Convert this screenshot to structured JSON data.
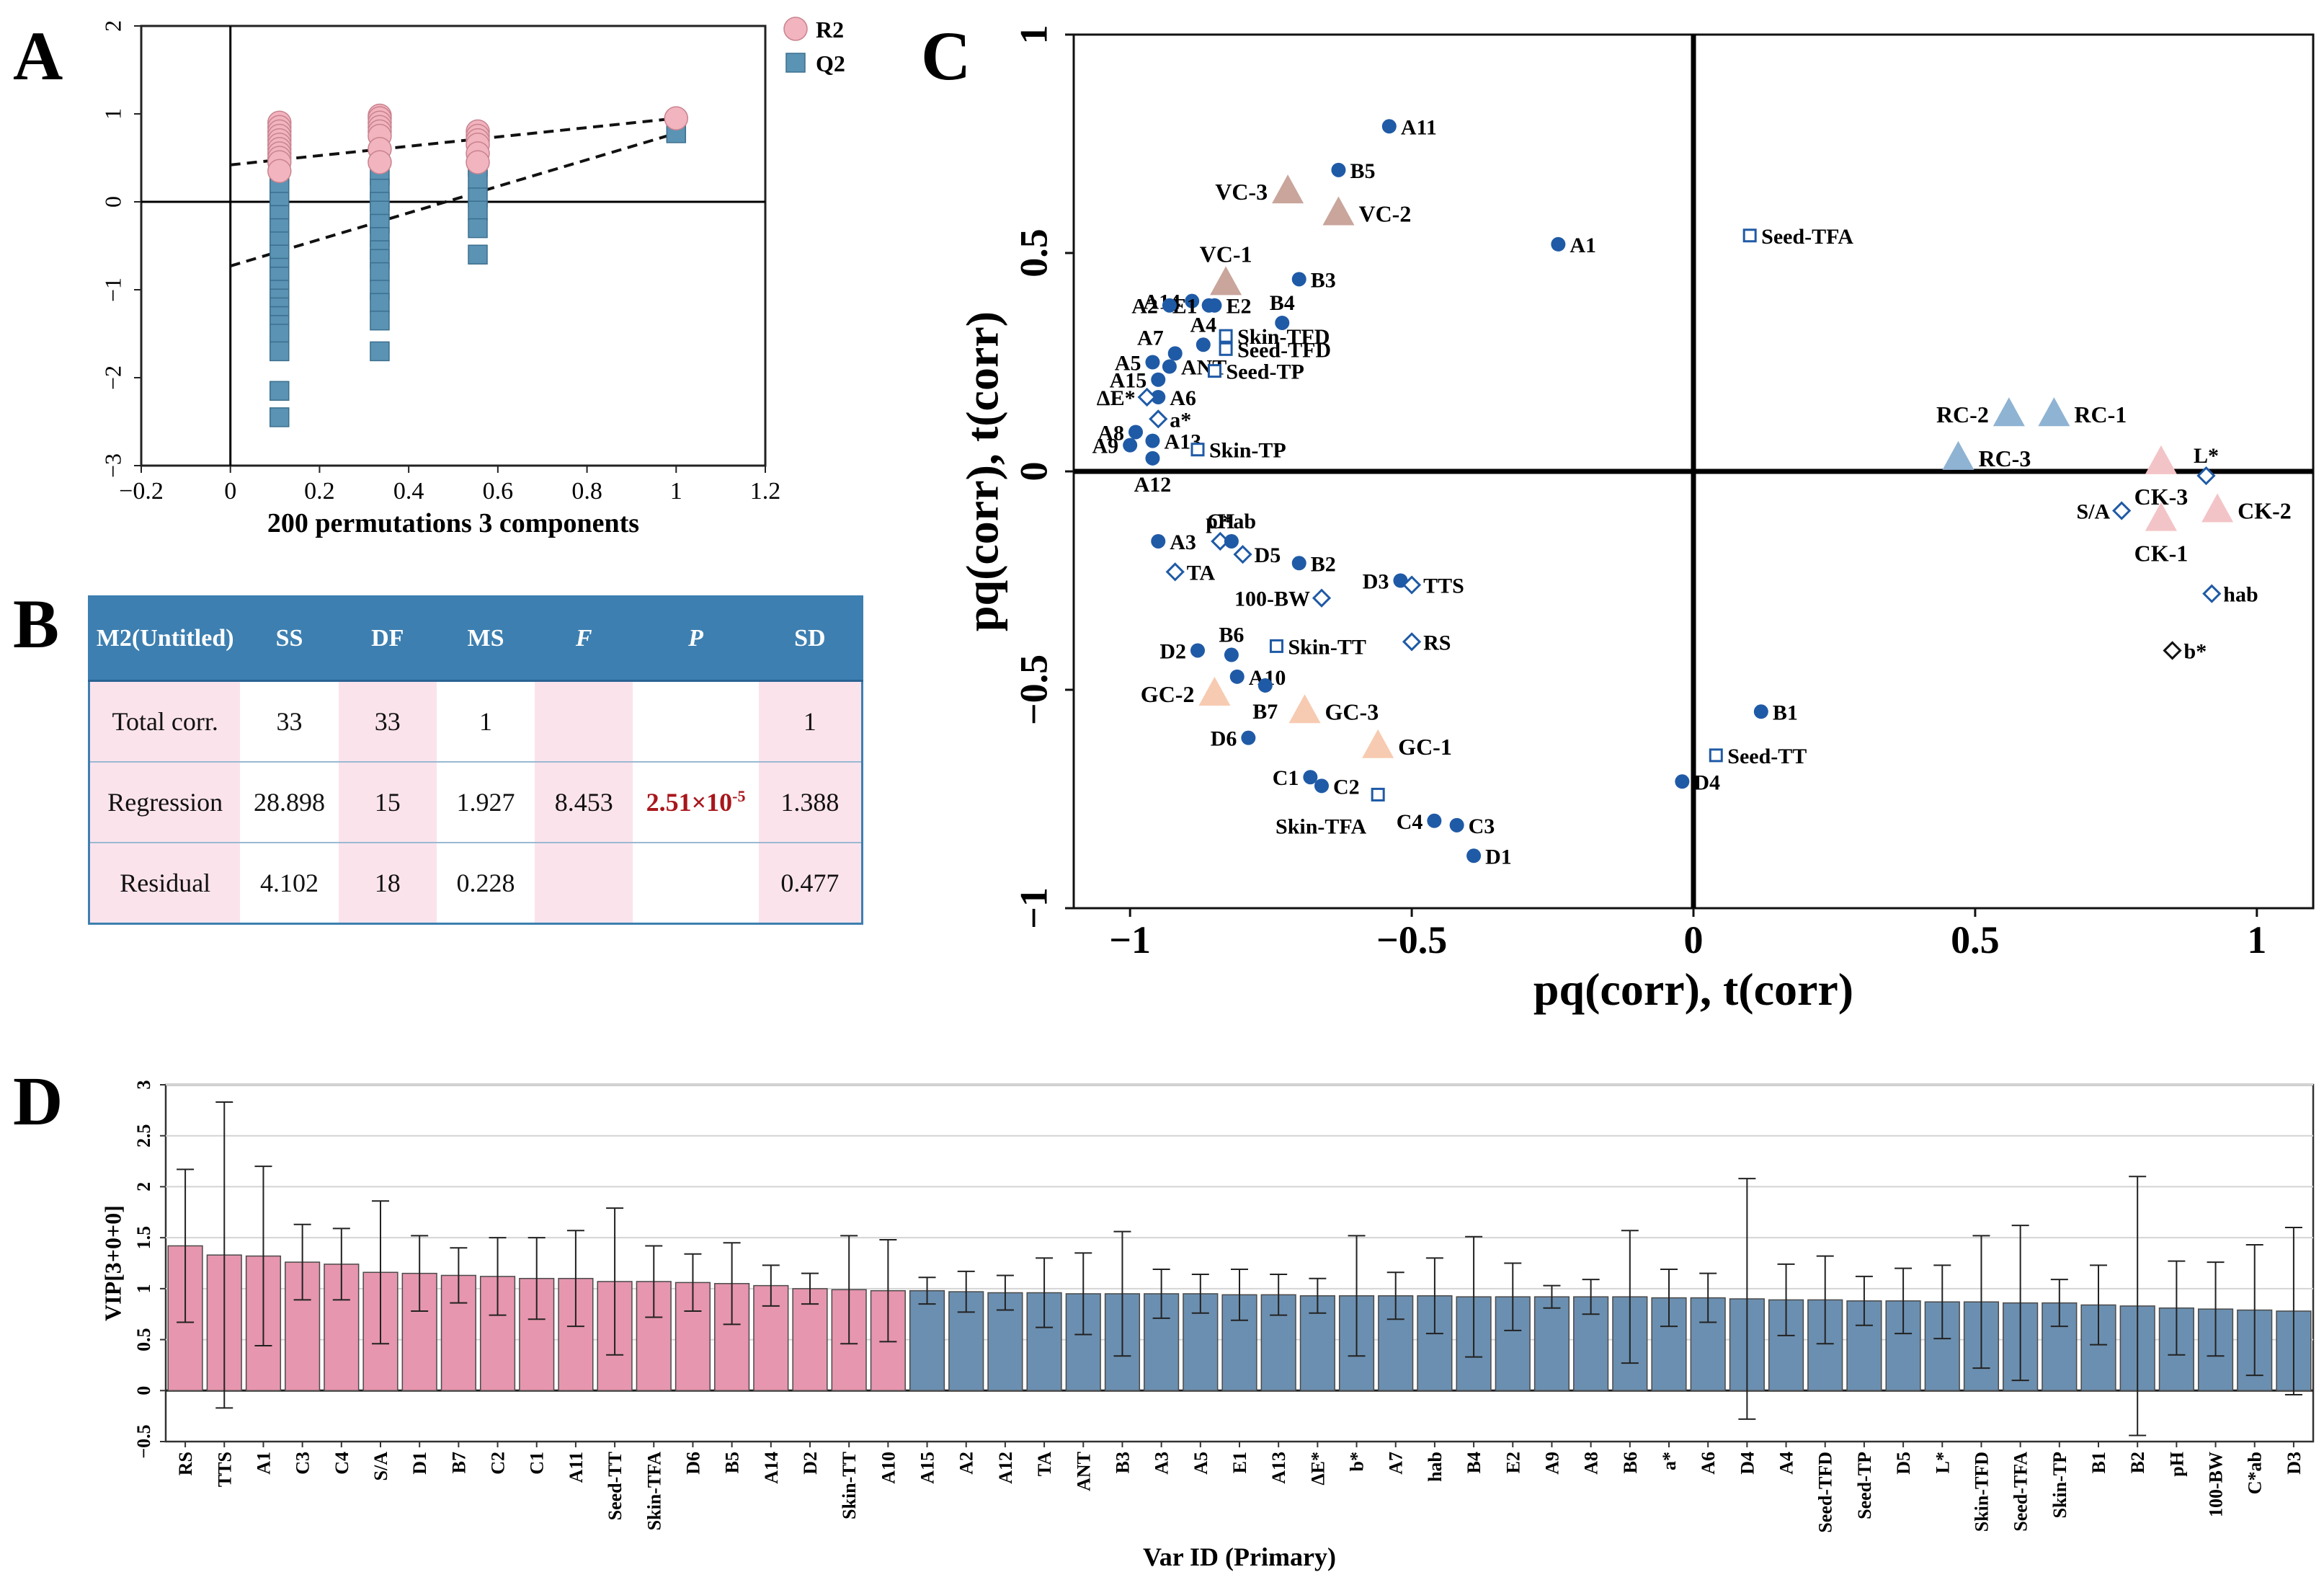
{
  "panel_labels": [
    "A",
    "B",
    "C",
    "D"
  ],
  "colors": {
    "r2": "#f2b4be",
    "q2": "#5a93b4",
    "pink_bar": "#e696ae",
    "blue_bar": "#6b8fb0",
    "dot": "#1f5aa6",
    "table_head": "#3d7fb0",
    "table_pink": "#fbe3ec",
    "red_p": "#a8161b"
  },
  "table": {
    "headers": [
      "M2(Untitled)",
      "SS",
      "DF",
      "MS",
      "F",
      "P",
      "SD"
    ],
    "rows": [
      {
        "label": "Total corr.",
        "ss": "33",
        "df": "33",
        "ms": "1",
        "f": "",
        "p": "",
        "sd": "1"
      },
      {
        "label": "Regression",
        "ss": "28.898",
        "df": "15",
        "ms": "1.927",
        "f": "8.453",
        "p": "2.51×10",
        "p_exp": "-5",
        "sd": "1.388"
      },
      {
        "label": "Residual",
        "ss": "4.102",
        "df": "18",
        "ms": "0.228",
        "f": "",
        "p": "",
        "sd": "0.477"
      }
    ]
  },
  "chart_data": [
    {
      "panel": "A",
      "type": "scatter",
      "title": "",
      "xlabel": "200 permutations 3 components",
      "ylabel": "",
      "xlim": [
        -0.2,
        1.2
      ],
      "ylim": [
        -3,
        2
      ],
      "xticks": [
        "−0.2",
        "0",
        "0.2",
        "0.4",
        "0.6",
        "0.8",
        "1",
        "1.2"
      ],
      "yticks": [
        "2",
        "1",
        "0",
        "−1",
        "−2",
        "−3"
      ],
      "legend": [
        "R2",
        "Q2"
      ],
      "series": [
        {
          "name": "R2",
          "x": [
            0.11,
            0.11,
            0.11,
            0.11,
            0.11,
            0.11,
            0.11,
            0.11,
            0.11,
            0.11,
            0.11,
            0.335,
            0.335,
            0.335,
            0.335,
            0.335,
            0.335,
            0.335,
            0.335,
            0.555,
            0.555,
            0.555,
            0.555,
            0.555,
            0.555,
            1.0
          ],
          "y": [
            0.9,
            0.85,
            0.8,
            0.75,
            0.7,
            0.65,
            0.6,
            0.55,
            0.5,
            0.45,
            0.35,
            0.98,
            0.95,
            0.9,
            0.85,
            0.8,
            0.75,
            0.6,
            0.45,
            0.8,
            0.75,
            0.7,
            0.65,
            0.55,
            0.45,
            0.95
          ]
        },
        {
          "name": "Q2",
          "x": [
            0.11,
            0.11,
            0.11,
            0.11,
            0.11,
            0.11,
            0.11,
            0.11,
            0.11,
            0.11,
            0.11,
            0.11,
            0.11,
            0.11,
            0.11,
            0.11,
            0.11,
            0.11,
            0.335,
            0.335,
            0.335,
            0.335,
            0.335,
            0.335,
            0.335,
            0.335,
            0.335,
            0.335,
            0.335,
            0.335,
            0.335,
            0.335,
            0.555,
            0.555,
            0.555,
            0.555,
            0.555,
            0.555,
            1.0
          ],
          "y": [
            0.3,
            0.15,
            0.0,
            -0.15,
            -0.3,
            -0.45,
            -0.6,
            -0.75,
            -0.85,
            -1.0,
            -1.1,
            -1.2,
            -1.3,
            -1.4,
            -1.5,
            -1.7,
            -2.15,
            -2.45,
            0.85,
            0.3,
            0.15,
            0.0,
            -0.1,
            -0.25,
            -0.4,
            -0.55,
            -0.65,
            -0.8,
            -1.0,
            -1.15,
            -1.35,
            -1.7,
            0.4,
            0.25,
            0.05,
            -0.1,
            -0.3,
            -0.6,
            0.78
          ]
        }
      ],
      "lines": [
        {
          "name": "R2 regression",
          "x": [
            0,
            1.0
          ],
          "y": [
            0.42,
            0.95
          ]
        },
        {
          "name": "Q2 regression",
          "x": [
            0,
            1.0
          ],
          "y": [
            -0.73,
            0.78
          ]
        }
      ]
    },
    {
      "panel": "C",
      "type": "scatter",
      "title": "",
      "xlabel": "pq(corr), t(corr)",
      "ylabel": "pq(corr), t(corr)",
      "xlim": [
        -1.1,
        1.1
      ],
      "ylim": [
        -1,
        1
      ],
      "xticks": [
        "−1",
        "−0.5",
        "0",
        "0.5",
        "1"
      ],
      "yticks": [
        "1",
        "0.5",
        "0",
        "−0.5",
        "−1"
      ],
      "points": [
        {
          "l": "A11",
          "x": -0.54,
          "y": 0.79,
          "t": "d"
        },
        {
          "l": "B5",
          "x": -0.63,
          "y": 0.69,
          "t": "d"
        },
        {
          "l": "A1",
          "x": -0.24,
          "y": 0.52,
          "t": "d"
        },
        {
          "l": "B3",
          "x": -0.7,
          "y": 0.44,
          "t": "d"
        },
        {
          "l": "A14",
          "x": -0.89,
          "y": 0.39,
          "t": "d",
          "lp": "l"
        },
        {
          "l": "E1",
          "x": -0.86,
          "y": 0.38,
          "t": "d",
          "lp": "l"
        },
        {
          "l": "A2",
          "x": -0.93,
          "y": 0.38,
          "t": "d",
          "lp": "l"
        },
        {
          "l": "E2",
          "x": -0.85,
          "y": 0.38,
          "t": "d"
        },
        {
          "l": "B4",
          "x": -0.73,
          "y": 0.34,
          "t": "d",
          "lp": "u"
        },
        {
          "l": "A7",
          "x": -0.92,
          "y": 0.27,
          "t": "d",
          "lp": "ul"
        },
        {
          "l": "A4",
          "x": -0.87,
          "y": 0.29,
          "t": "d",
          "lp": "u"
        },
        {
          "l": "A5",
          "x": -0.96,
          "y": 0.25,
          "t": "d",
          "lp": "l"
        },
        {
          "l": "ANT",
          "x": -0.93,
          "y": 0.24,
          "t": "d"
        },
        {
          "l": "A15",
          "x": -0.95,
          "y": 0.21,
          "t": "d",
          "lp": "l"
        },
        {
          "l": "A6",
          "x": -0.95,
          "y": 0.17,
          "t": "d"
        },
        {
          "l": "A8",
          "x": -0.99,
          "y": 0.09,
          "t": "d",
          "lp": "l"
        },
        {
          "l": "A9",
          "x": -1.0,
          "y": 0.06,
          "t": "d",
          "lp": "l"
        },
        {
          "l": "A13",
          "x": -0.96,
          "y": 0.07,
          "t": "d"
        },
        {
          "l": "A12",
          "x": -0.96,
          "y": 0.03,
          "t": "d",
          "lp": "b"
        },
        {
          "l": "ΔE*",
          "x": -0.97,
          "y": 0.17,
          "t": "o",
          "lp": "l"
        },
        {
          "l": "a*",
          "x": -0.95,
          "y": 0.12,
          "t": "o"
        },
        {
          "l": "Skin-TFD",
          "x": -0.83,
          "y": 0.31,
          "t": "s"
        },
        {
          "l": "Seed-TFD",
          "x": -0.83,
          "y": 0.28,
          "t": "s"
        },
        {
          "l": "Seed-TP",
          "x": -0.85,
          "y": 0.23,
          "t": "s"
        },
        {
          "l": "Skin-TP",
          "x": -0.88,
          "y": 0.05,
          "t": "s"
        },
        {
          "l": "Seed-TFA",
          "x": 0.1,
          "y": 0.54,
          "t": "s"
        },
        {
          "l": "pH",
          "x": -0.84,
          "y": -0.16,
          "t": "o",
          "lp": "u"
        },
        {
          "l": "C*ab",
          "x": -0.82,
          "y": -0.16,
          "t": "d",
          "lp": "u"
        },
        {
          "l": "D5",
          "x": -0.8,
          "y": -0.19,
          "t": "o"
        },
        {
          "l": "A3",
          "x": -0.95,
          "y": -0.16,
          "t": "d"
        },
        {
          "l": "B2",
          "x": -0.7,
          "y": -0.21,
          "t": "d"
        },
        {
          "l": "TA",
          "x": -0.92,
          "y": -0.23,
          "t": "o"
        },
        {
          "l": "D3",
          "x": -0.52,
          "y": -0.25,
          "t": "d",
          "lp": "l"
        },
        {
          "l": "TTS",
          "x": -0.5,
          "y": -0.26,
          "t": "o"
        },
        {
          "l": "100-BW",
          "x": -0.66,
          "y": -0.29,
          "t": "o",
          "lp": "l"
        },
        {
          "l": "RS",
          "x": -0.5,
          "y": -0.39,
          "t": "o"
        },
        {
          "l": "Skin-TT",
          "x": -0.74,
          "y": -0.4,
          "t": "s"
        },
        {
          "l": "D2",
          "x": -0.88,
          "y": -0.41,
          "t": "d",
          "lp": "l"
        },
        {
          "l": "B6",
          "x": -0.82,
          "y": -0.42,
          "t": "d",
          "lp": "u"
        },
        {
          "l": "A10",
          "x": -0.81,
          "y": -0.47,
          "t": "d"
        },
        {
          "l": "B7",
          "x": -0.76,
          "y": -0.49,
          "t": "d",
          "lp": "b"
        },
        {
          "l": "D6",
          "x": -0.79,
          "y": -0.61,
          "t": "d",
          "lp": "l"
        },
        {
          "l": "C1",
          "x": -0.68,
          "y": -0.7,
          "t": "d",
          "lp": "l"
        },
        {
          "l": "C2",
          "x": -0.66,
          "y": -0.72,
          "t": "d"
        },
        {
          "l": "Skin-TFA",
          "x": -0.56,
          "y": -0.74,
          "t": "s",
          "lp": "bl"
        },
        {
          "l": "C4",
          "x": -0.46,
          "y": -0.8,
          "t": "d",
          "lp": "l"
        },
        {
          "l": "C3",
          "x": -0.42,
          "y": -0.81,
          "t": "d"
        },
        {
          "l": "D1",
          "x": -0.39,
          "y": -0.88,
          "t": "d"
        },
        {
          "l": "D4",
          "x": -0.02,
          "y": -0.71,
          "t": "d"
        },
        {
          "l": "B1",
          "x": 0.12,
          "y": -0.55,
          "t": "d"
        },
        {
          "l": "Seed-TT",
          "x": 0.04,
          "y": -0.65,
          "t": "s"
        },
        {
          "l": "L*",
          "x": 0.91,
          "y": -0.01,
          "t": "o",
          "lp": "u"
        },
        {
          "l": "S/A",
          "x": 0.76,
          "y": -0.09,
          "t": "o",
          "lp": "l"
        },
        {
          "l": "hab",
          "x": 0.92,
          "y": -0.28,
          "t": "o"
        },
        {
          "l": "b*",
          "x": 0.85,
          "y": -0.41,
          "t": "k"
        }
      ],
      "groups": [
        {
          "l": "VC-3",
          "x": -0.72,
          "y": 0.64,
          "c": "#c9a59b",
          "lp": "l"
        },
        {
          "l": "VC-2",
          "x": -0.63,
          "y": 0.59,
          "c": "#c9a59b"
        },
        {
          "l": "VC-1",
          "x": -0.83,
          "y": 0.43,
          "c": "#c9a59b",
          "lp": "u"
        },
        {
          "l": "RC-2",
          "x": 0.56,
          "y": 0.13,
          "c": "#8fb3d3",
          "lp": "l"
        },
        {
          "l": "RC-1",
          "x": 0.64,
          "y": 0.13,
          "c": "#8fb3d3"
        },
        {
          "l": "RC-3",
          "x": 0.47,
          "y": 0.03,
          "c": "#8fb3d3"
        },
        {
          "l": "CK-3",
          "x": 0.83,
          "y": 0.02,
          "c": "#f3c4c7",
          "lp": "b"
        },
        {
          "l": "CK-2",
          "x": 0.93,
          "y": -0.09,
          "c": "#f3c4c7"
        },
        {
          "l": "CK-1",
          "x": 0.83,
          "y": -0.11,
          "c": "#f3c4c7",
          "lp": "b"
        },
        {
          "l": "GC-2",
          "x": -0.85,
          "y": -0.51,
          "c": "#f7cbb1",
          "lp": "l"
        },
        {
          "l": "GC-3",
          "x": -0.69,
          "y": -0.55,
          "c": "#f7cbb1"
        },
        {
          "l": "GC-1",
          "x": -0.56,
          "y": -0.63,
          "c": "#f7cbb1"
        }
      ]
    },
    {
      "panel": "D",
      "type": "bar",
      "title": "",
      "xlabel": "Var ID (Primary)",
      "ylabel": "VIP[3+0+0]",
      "ylim": [
        -0.5,
        3
      ],
      "yticks": [
        "3",
        "2.5",
        "2",
        "1.5",
        "1",
        "0.5",
        "0",
        "−0.5"
      ],
      "categories": [
        "RS",
        "TTS",
        "A1",
        "C3",
        "C4",
        "S/A",
        "D1",
        "B7",
        "C2",
        "C1",
        "A11",
        "Seed-TT",
        "Skin-TFA",
        "D6",
        "B5",
        "A14",
        "D2",
        "Skin-TT",
        "A10",
        "A15",
        "A2",
        "A12",
        "TA",
        "ANT",
        "B3",
        "A3",
        "A5",
        "E1",
        "A13",
        "ΔE*",
        "b*",
        "A7",
        "hab",
        "B4",
        "E2",
        "A9",
        "A8",
        "B6",
        "a*",
        "A6",
        "D4",
        "A4",
        "Seed-TFD",
        "Seed-TP",
        "D5",
        "L*",
        "Skin-TFD",
        "Seed-TFA",
        "Skin-TP",
        "B1",
        "B2",
        "pH",
        "100-BW",
        "C*ab",
        "D3"
      ],
      "values": [
        1.42,
        1.33,
        1.32,
        1.26,
        1.24,
        1.16,
        1.15,
        1.13,
        1.12,
        1.1,
        1.1,
        1.07,
        1.07,
        1.06,
        1.05,
        1.03,
        1.0,
        0.99,
        0.98,
        0.98,
        0.97,
        0.96,
        0.96,
        0.95,
        0.95,
        0.95,
        0.95,
        0.94,
        0.94,
        0.93,
        0.93,
        0.93,
        0.93,
        0.92,
        0.92,
        0.92,
        0.92,
        0.92,
        0.91,
        0.91,
        0.9,
        0.89,
        0.89,
        0.88,
        0.88,
        0.87,
        0.87,
        0.86,
        0.86,
        0.84,
        0.83,
        0.81,
        0.8,
        0.79,
        0.78
      ],
      "errors": [
        0.75,
        1.5,
        0.88,
        0.37,
        0.35,
        0.7,
        0.37,
        0.27,
        0.38,
        0.4,
        0.47,
        0.72,
        0.35,
        0.28,
        0.4,
        0.2,
        0.15,
        0.53,
        0.5,
        0.13,
        0.2,
        0.17,
        0.34,
        0.4,
        0.61,
        0.24,
        0.19,
        0.25,
        0.2,
        0.17,
        0.59,
        0.23,
        0.37,
        0.59,
        0.33,
        0.11,
        0.17,
        0.65,
        0.28,
        0.24,
        1.18,
        0.35,
        0.43,
        0.24,
        0.32,
        0.36,
        0.65,
        0.76,
        0.23,
        0.39,
        1.27,
        0.46,
        0.46,
        0.64,
        0.82
      ],
      "highlight_count": 19
    }
  ]
}
